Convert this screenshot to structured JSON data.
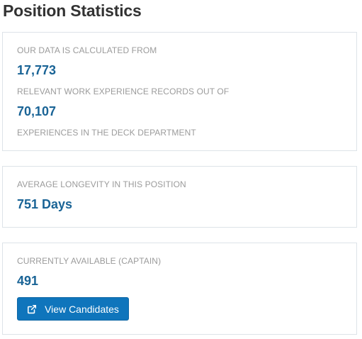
{
  "page": {
    "title": "Position Statistics"
  },
  "data_source": {
    "intro_label": "OUR DATA IS CALCULATED FROM",
    "relevant_count": "17,773",
    "middle_label": "RELEVANT WORK EXPERIENCE RECORDS OUT OF",
    "total_count": "70,107",
    "outro_label": "EXPERIENCES IN THE DECK DEPARTMENT"
  },
  "longevity": {
    "label": "AVERAGE LONGEVITY IN THIS POSITION",
    "value": "751 Days"
  },
  "availability": {
    "label": "CURRENTLY AVAILABLE (CAPTAIN)",
    "value": "491",
    "button_label": "View Candidates",
    "button_icon": "external-link-icon"
  },
  "colors": {
    "accent": "#0f75bc",
    "value_text": "#1a6496",
    "label_text": "#9b9b9b"
  }
}
